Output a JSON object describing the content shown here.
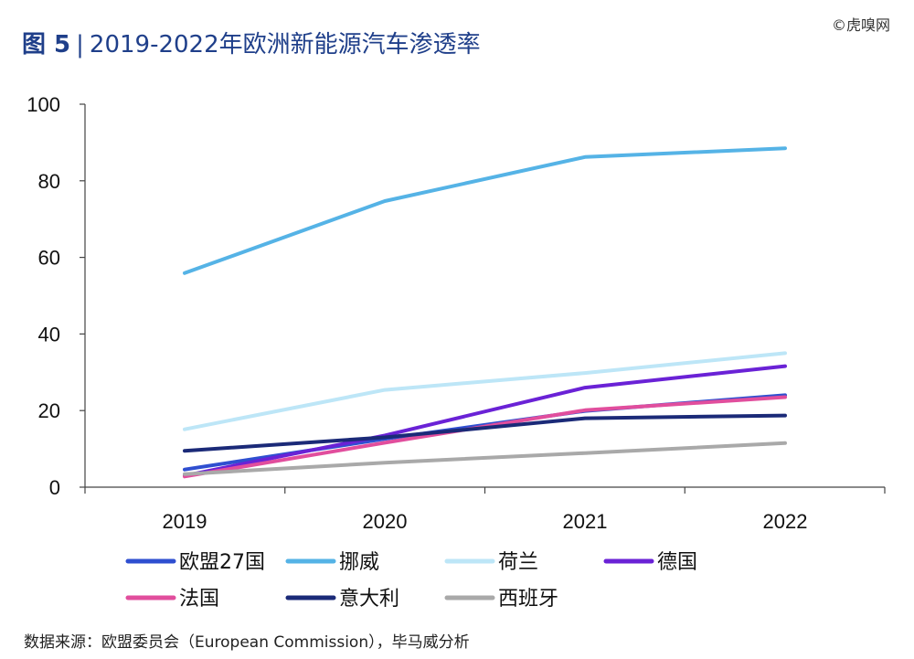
{
  "header": {
    "figure_label": "图 5",
    "separator": "|",
    "title_text": "2019-2022年欧洲新能源汽车渗透率"
  },
  "watermark": "©虎嗅网",
  "source": "数据来源：欧盟委员会（European Commission），毕马威分析",
  "chart_data": {
    "type": "line",
    "title": "2019-2022年欧洲新能源汽车渗透率",
    "x": [
      "2019",
      "2020",
      "2021",
      "2022"
    ],
    "ylim": [
      0,
      100
    ],
    "yticks": [
      0,
      20,
      40,
      60,
      80,
      100
    ],
    "grid": false,
    "legend_position": "bottom",
    "series": [
      {
        "name": "欧盟27国",
        "color": "#2f4fd0",
        "values": [
          4.6,
          12.6,
          19.9,
          24.0
        ]
      },
      {
        "name": "挪威",
        "color": "#55b3e6",
        "values": [
          55.9,
          74.7,
          86.2,
          88.5
        ]
      },
      {
        "name": "荷兰",
        "color": "#bde6f7",
        "values": [
          15.1,
          25.4,
          29.8,
          35.0
        ]
      },
      {
        "name": "德国",
        "color": "#6a22d6",
        "values": [
          3.0,
          13.5,
          26.0,
          31.6
        ]
      },
      {
        "name": "法国",
        "color": "#e14e9d",
        "values": [
          2.8,
          11.6,
          20.1,
          23.5
        ]
      },
      {
        "name": "意大利",
        "color": "#1b2a78",
        "values": [
          9.5,
          13.0,
          18.0,
          18.7
        ]
      },
      {
        "name": "西班牙",
        "color": "#a9a9a9",
        "values": [
          3.4,
          6.4,
          8.9,
          11.5
        ]
      }
    ]
  }
}
